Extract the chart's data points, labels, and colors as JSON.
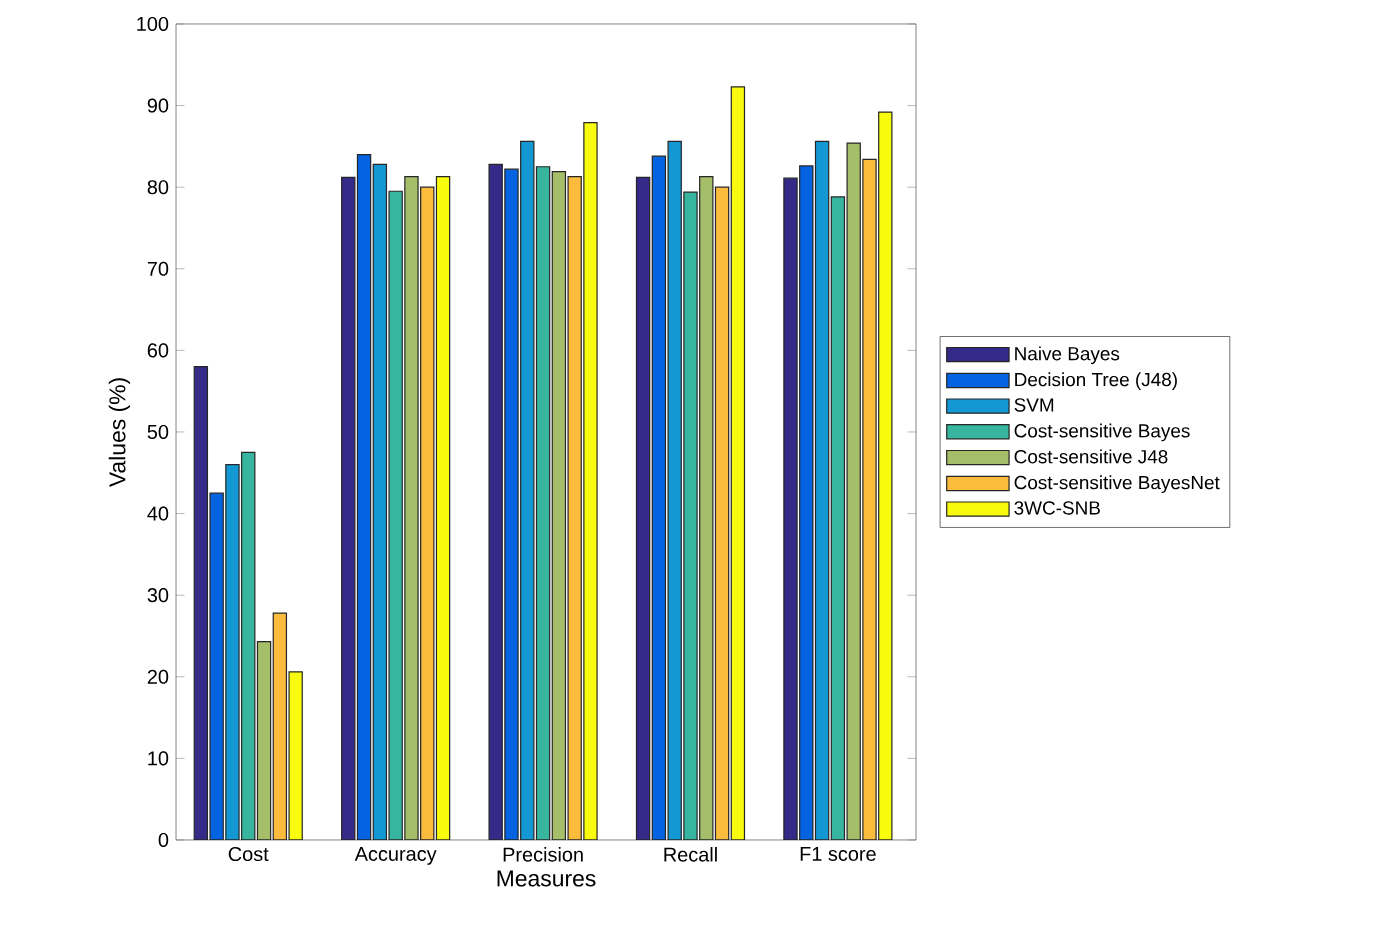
{
  "chart_data": {
    "type": "bar",
    "xlabel": "Measures",
    "ylabel": "Values (%)",
    "categories": [
      "Cost",
      "Accuracy",
      "Precision",
      "Recall",
      "F1 score"
    ],
    "series": [
      {
        "name": "Naive Bayes",
        "color": "#352a87",
        "values": [
          58,
          81.2,
          82.8,
          81.2,
          81.1
        ]
      },
      {
        "name": "Decision Tree (J48)",
        "color": "#0363e1",
        "values": [
          42.5,
          84,
          82.2,
          83.8,
          82.6
        ]
      },
      {
        "name": "SVM",
        "color": "#1498d4",
        "values": [
          46,
          82.8,
          85.6,
          85.6,
          85.6
        ]
      },
      {
        "name": "Cost-sensitive Bayes",
        "color": "#38b59f",
        "values": [
          47.5,
          79.5,
          82.5,
          79.4,
          78.8
        ]
      },
      {
        "name": "Cost-sensitive J48",
        "color": "#a5be6a",
        "values": [
          24.3,
          81.3,
          81.9,
          81.3,
          85.4
        ]
      },
      {
        "name": "Cost-sensitive BayesNet",
        "color": "#fbbb3d",
        "values": [
          27.8,
          80,
          81.3,
          80,
          83.4
        ]
      },
      {
        "name": "3WC-SNB",
        "color": "#f9fb0e",
        "values": [
          20.6,
          81.3,
          87.9,
          92.3,
          89.2
        ]
      }
    ],
    "ylim": [
      0,
      100
    ],
    "yticks": [
      0,
      10,
      20,
      30,
      40,
      50,
      60,
      70,
      80,
      90,
      100
    ],
    "grid": false,
    "legend": "right"
  }
}
